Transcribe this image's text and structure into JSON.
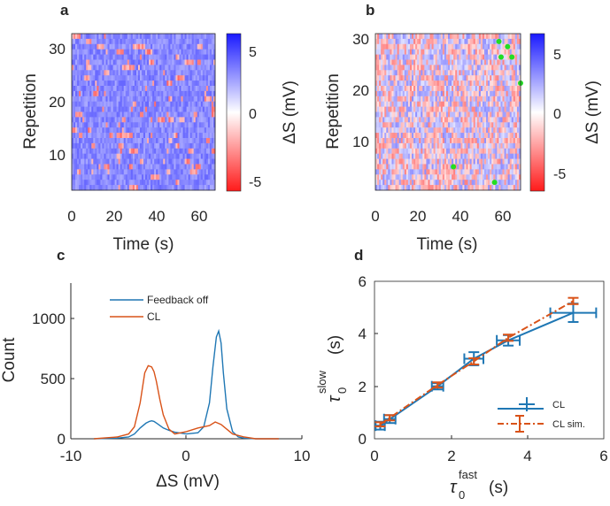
{
  "panels": {
    "a": {
      "letter": "a",
      "ylabel": "Repetition",
      "xlabel": "Time (s)",
      "colorbar_label": "ΔS (mV)",
      "x_ticks": [
        "0",
        "20",
        "40",
        "60"
      ],
      "y_ticks": [
        "10",
        "20",
        "30"
      ],
      "colorbar_ticks": [
        "5",
        "0",
        "-5"
      ]
    },
    "b": {
      "letter": "b",
      "ylabel": "Repetition",
      "xlabel": "Time (s)",
      "colorbar_label": "ΔS (mV)",
      "x_ticks": [
        "0",
        "20",
        "40",
        "60"
      ],
      "y_ticks": [
        "10",
        "20",
        "30"
      ],
      "colorbar_ticks": [
        "5",
        "0",
        "-5"
      ]
    },
    "c": {
      "letter": "c",
      "ylabel": "Count",
      "xlabel": "ΔS (mV)",
      "x_ticks": [
        "-10",
        "0",
        "10"
      ],
      "y_ticks": [
        "0",
        "500",
        "1000"
      ]
    },
    "d": {
      "letter": "d",
      "x_ticks": [
        "0",
        "2",
        "4",
        "6"
      ],
      "y_ticks": [
        "0",
        "2",
        "4",
        "6"
      ]
    }
  },
  "chart_data": [
    {
      "panel": "a",
      "type": "heatmap",
      "title": "",
      "xlabel": "Time (s)",
      "ylabel": "Repetition",
      "xlim": [
        0,
        67
      ],
      "ylim": [
        0.5,
        30.5
      ],
      "n_rows": 30,
      "colorbar": {
        "label": "ΔS (mV)",
        "range": [
          -6,
          6
        ],
        "ticks": [
          5,
          0,
          -5
        ],
        "colormap": "red-white-blue"
      },
      "description_values": "mostly positive ΔS (~2.5 mV, blue) with sparse negative red events"
    },
    {
      "panel": "b",
      "type": "heatmap",
      "title": "",
      "xlabel": "Time (s)",
      "ylabel": "Repetition",
      "xlim": [
        0,
        67
      ],
      "ylim": [
        0.5,
        30.5
      ],
      "n_rows": 30,
      "colorbar": {
        "label": "ΔS (mV)",
        "range": [
          -6,
          6
        ],
        "ticks": [
          5,
          0,
          -5
        ],
        "colormap": "red-white-blue"
      },
      "markers": {
        "color": "#22dd22",
        "points": [
          [
            57,
            29
          ],
          [
            61,
            28
          ],
          [
            58,
            26
          ],
          [
            63,
            26
          ],
          [
            67,
            21
          ],
          [
            36,
            5
          ],
          [
            55,
            2
          ]
        ]
      }
    },
    {
      "panel": "c",
      "type": "line",
      "title": "",
      "xlabel": "ΔS (mV)",
      "ylabel": "Count",
      "xlim": [
        -10,
        10
      ],
      "ylim": [
        0,
        1300
      ],
      "legend_position": "top",
      "series": [
        {
          "name": "Feedback off",
          "color": "#1f77b4",
          "x": [
            -8,
            -6,
            -5,
            -4.5,
            -4,
            -3.5,
            -3.2,
            -3,
            -2.8,
            -2.5,
            -2,
            -1.5,
            -1,
            0,
            1,
            1.5,
            2,
            2.3,
            2.6,
            2.8,
            3,
            3.2,
            3.5,
            4,
            4.5,
            5,
            6,
            8
          ],
          "y": [
            0,
            5,
            15,
            40,
            90,
            130,
            145,
            150,
            145,
            125,
            90,
            70,
            55,
            40,
            50,
            100,
            300,
            600,
            850,
            900,
            800,
            550,
            250,
            60,
            15,
            5,
            0,
            0
          ]
        },
        {
          "name": "CL",
          "color": "#d95319",
          "x": [
            -8,
            -6,
            -5,
            -4.5,
            -4,
            -3.6,
            -3.3,
            -3,
            -2.8,
            -2.6,
            -2.3,
            -2,
            -1.5,
            -1,
            0,
            1,
            2,
            2.5,
            3,
            3.5,
            4,
            5,
            6,
            8
          ],
          "y": [
            0,
            15,
            40,
            100,
            300,
            550,
            610,
            600,
            560,
            480,
            330,
            200,
            80,
            40,
            60,
            90,
            110,
            140,
            120,
            80,
            40,
            15,
            0,
            0
          ]
        }
      ],
      "y_ticks": [
        0,
        500,
        1000
      ],
      "x_ticks": [
        -10,
        0,
        10
      ]
    },
    {
      "panel": "d",
      "type": "line",
      "title": "",
      "xlabel": "τ₀^fast (s)",
      "ylabel": "τ₀^slow (s)",
      "xlim": [
        0,
        6
      ],
      "ylim": [
        0,
        6
      ],
      "legend_position": "bottom-right",
      "series": [
        {
          "name": "CL",
          "color": "#1f77b4",
          "style": "solid",
          "x": [
            0.15,
            0.4,
            1.65,
            2.6,
            3.5,
            5.2
          ],
          "y": [
            0.5,
            0.75,
            2.0,
            3.05,
            3.75,
            4.8
          ],
          "xerr": [
            0.12,
            0.15,
            0.15,
            0.25,
            0.3,
            0.6
          ],
          "yerr": [
            0.15,
            0.15,
            0.12,
            0.25,
            0.2,
            0.35
          ]
        },
        {
          "name": "CL sim.",
          "color": "#d95319",
          "style": "dash-dot",
          "x": [
            0.15,
            0.4,
            1.65,
            2.6,
            3.5,
            5.2
          ],
          "y": [
            0.55,
            0.8,
            2.05,
            2.95,
            3.85,
            5.25
          ],
          "yerr": [
            0.08,
            0.1,
            0.1,
            0.12,
            0.12,
            0.12
          ]
        }
      ]
    }
  ]
}
